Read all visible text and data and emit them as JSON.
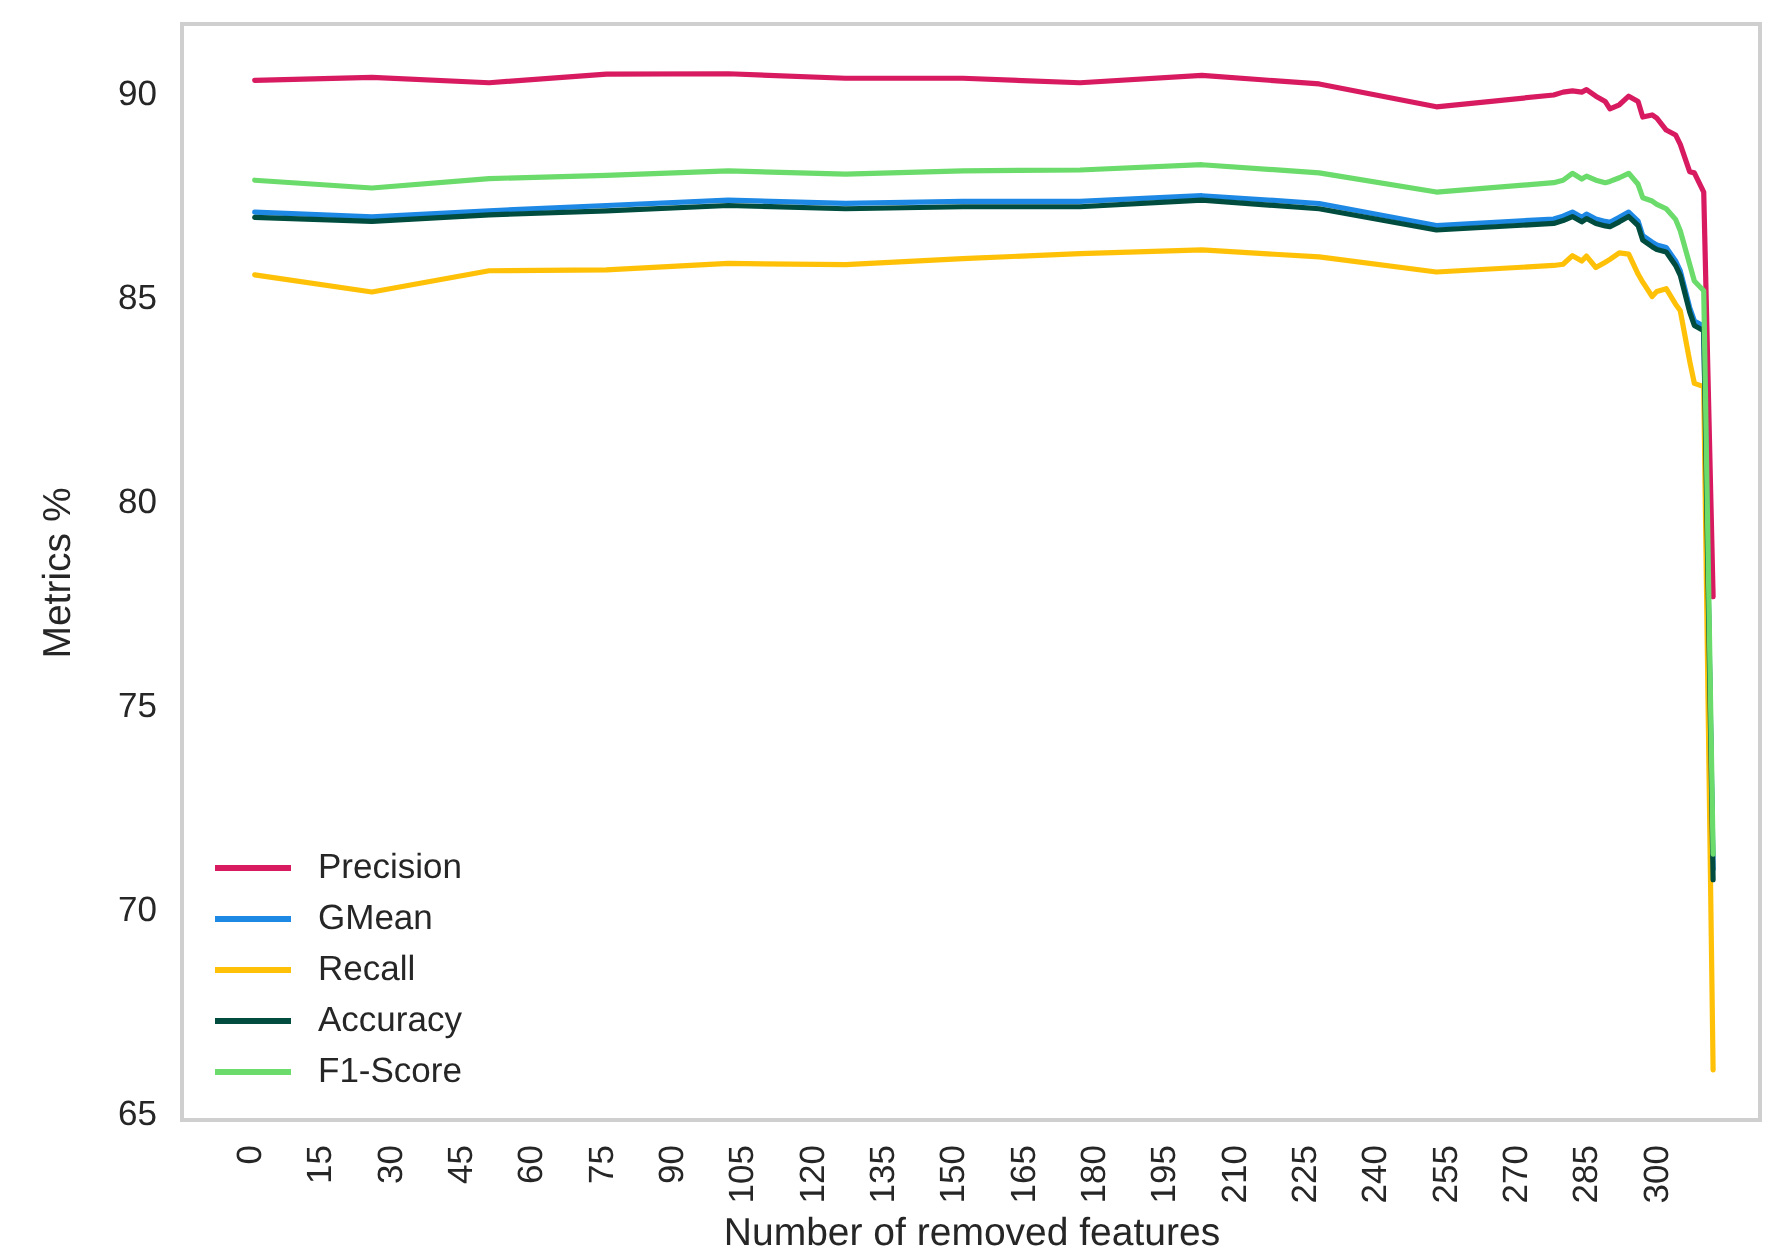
{
  "chart_data": {
    "type": "line",
    "xlabel": "Number of removed features",
    "ylabel": "Metrics %",
    "x": [
      1,
      26,
      51,
      76,
      102,
      127,
      152,
      177,
      203,
      228,
      253,
      278,
      280,
      282,
      284,
      285,
      287,
      289,
      290,
      292,
      294,
      296,
      297,
      299,
      300,
      302,
      304,
      305,
      307,
      308,
      310,
      312
    ],
    "series": [
      {
        "name": "Precision",
        "color": "#d81b60",
        "values": [
          90.34,
          90.41,
          90.28,
          90.49,
          90.5,
          90.39,
          90.39,
          90.28,
          90.46,
          90.25,
          89.69,
          89.98,
          90.05,
          90.08,
          90.05,
          90.11,
          89.95,
          89.82,
          89.64,
          89.74,
          89.95,
          89.82,
          89.44,
          89.49,
          89.41,
          89.12,
          89.0,
          88.77,
          88.1,
          88.07,
          87.6,
          77.68
        ]
      },
      {
        "name": "GMean",
        "color": "#1e88e5",
        "values": [
          87.11,
          86.99,
          87.14,
          87.27,
          87.4,
          87.32,
          87.37,
          87.37,
          87.51,
          87.32,
          86.78,
          86.94,
          87.01,
          87.11,
          86.98,
          87.06,
          86.94,
          86.88,
          86.86,
          86.98,
          87.11,
          86.89,
          86.53,
          86.37,
          86.3,
          86.24,
          85.91,
          85.67,
          84.77,
          84.44,
          84.31,
          71.0
        ]
      },
      {
        "name": "Recall",
        "color": "#ffc107",
        "values": [
          85.57,
          85.15,
          85.67,
          85.69,
          85.85,
          85.82,
          85.97,
          86.09,
          86.18,
          86.01,
          85.64,
          85.8,
          85.83,
          86.04,
          85.91,
          86.03,
          85.75,
          85.88,
          85.95,
          86.11,
          86.08,
          85.59,
          85.39,
          85.04,
          85.16,
          85.23,
          84.85,
          84.69,
          83.46,
          82.91,
          82.83,
          66.08
        ]
      },
      {
        "name": "Accuracy",
        "color": "#004d40",
        "values": [
          86.98,
          86.88,
          87.04,
          87.14,
          87.27,
          87.19,
          87.24,
          87.24,
          87.4,
          87.19,
          86.67,
          86.83,
          86.9,
          87.0,
          86.87,
          86.95,
          86.83,
          86.77,
          86.75,
          86.87,
          87.0,
          86.78,
          86.42,
          86.26,
          86.19,
          86.13,
          85.8,
          85.56,
          84.66,
          84.33,
          84.2,
          70.74
        ]
      },
      {
        "name": "F1-Score",
        "color": "#6bdb6b",
        "values": [
          87.89,
          87.7,
          87.93,
          88.01,
          88.12,
          88.04,
          88.12,
          88.14,
          88.27,
          88.07,
          87.6,
          87.83,
          87.89,
          88.06,
          87.92,
          87.99,
          87.89,
          87.83,
          87.86,
          87.95,
          88.06,
          87.79,
          87.46,
          87.38,
          87.3,
          87.19,
          86.93,
          86.65,
          85.83,
          85.42,
          85.18,
          71.37
        ]
      }
    ],
    "xlim": [
      -14.5,
      322
    ],
    "ylim": [
      64.85,
      91.72
    ],
    "xticks": [
      0,
      15,
      30,
      45,
      60,
      75,
      90,
      105,
      120,
      135,
      150,
      165,
      180,
      195,
      210,
      225,
      240,
      255,
      270,
      285,
      300
    ],
    "yticks": [
      65,
      70,
      75,
      80,
      85,
      90
    ],
    "grid": false,
    "legend": "bottom left",
    "line_style": "solid"
  }
}
